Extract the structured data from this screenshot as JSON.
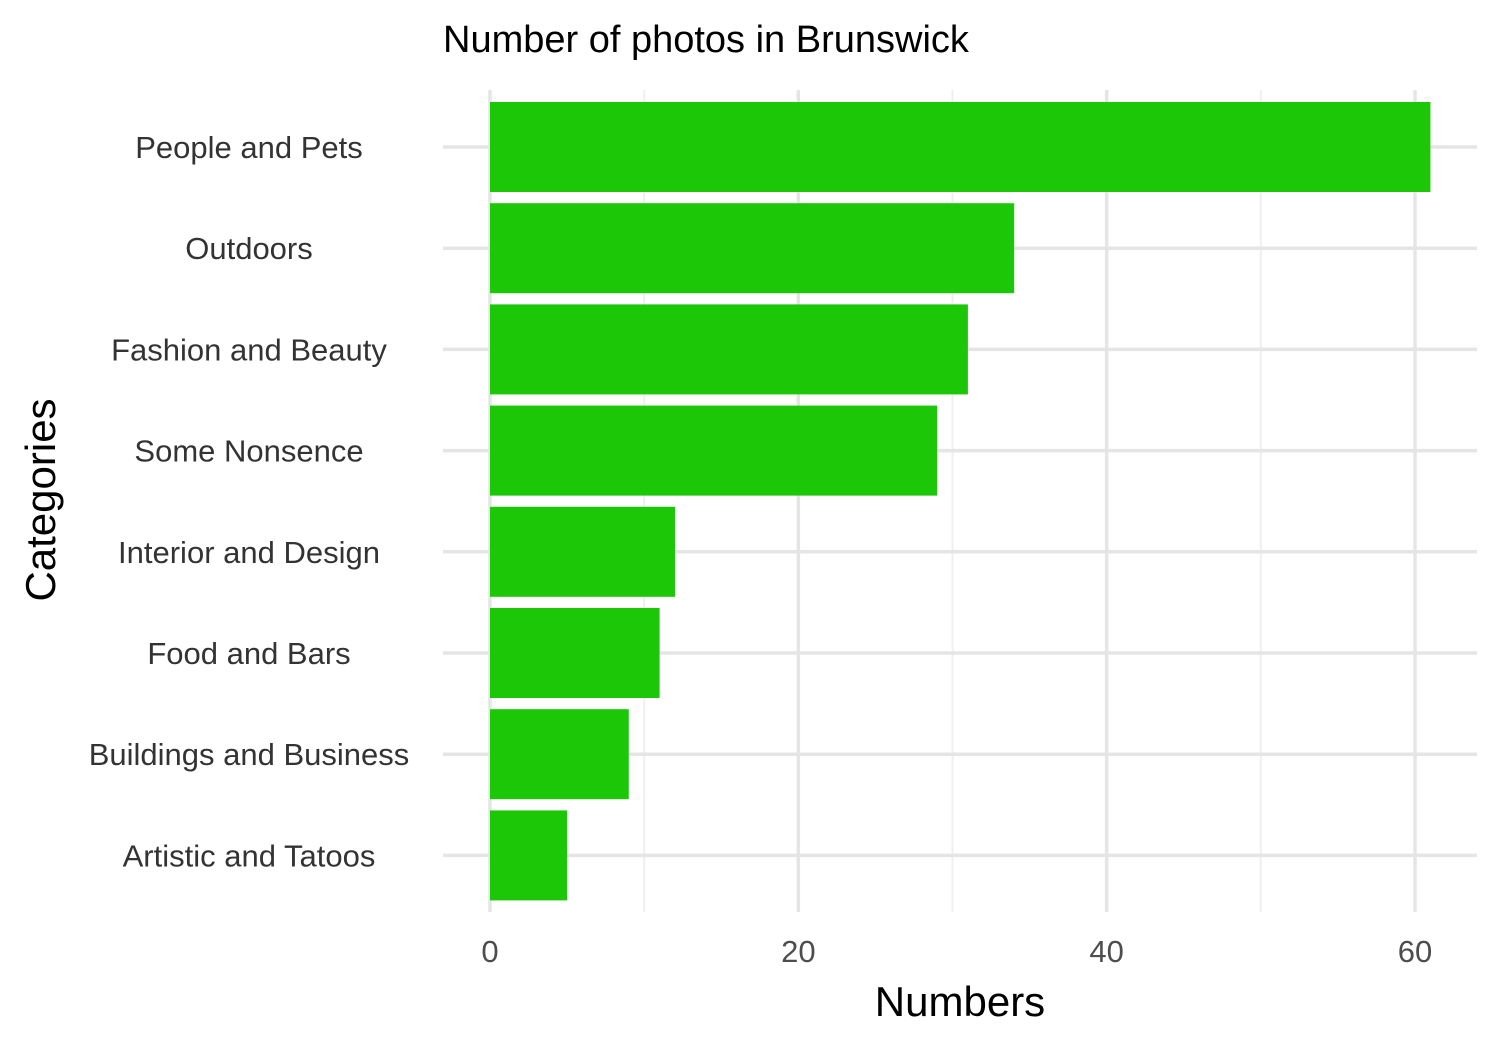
{
  "chart_data": {
    "type": "bar",
    "orientation": "horizontal",
    "title": "Number of photos in Brunswick",
    "xlabel": "Numbers",
    "ylabel": "Categories",
    "categories": [
      "People and Pets",
      "Outdoors",
      "Fashion and Beauty",
      "Some Nonsence",
      "Interior and Design",
      "Food and Bars",
      "Buildings and Business",
      "Artistic and Tatoos"
    ],
    "values": [
      61,
      34,
      31,
      29,
      12,
      11,
      9,
      5
    ],
    "xlim": [
      0,
      64
    ],
    "x_ticks": [
      0,
      20,
      40,
      60
    ],
    "x_minor_ticks": [
      10,
      30,
      50
    ],
    "grid": true,
    "legend": "none",
    "bar_color": "#1cc708"
  }
}
